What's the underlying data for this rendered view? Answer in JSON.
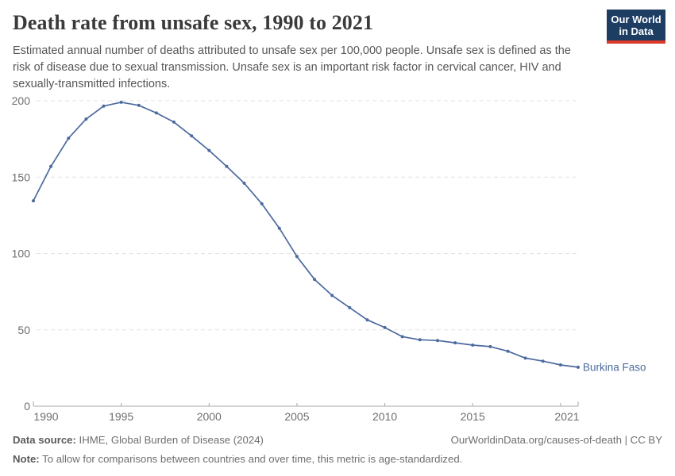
{
  "header": {
    "title": "Death rate from unsafe sex, 1990 to 2021",
    "subtitle_lines": [
      "Estimated annual number of deaths attributed to unsafe sex per 100,000 people. Unsafe sex is defined as the",
      "risk of disease due to sexual transmission. Unsafe sex is an important risk factor in cervical cancer, HIV and",
      "sexually-transmitted infections."
    ],
    "logo": {
      "line1": "Our World",
      "line2": "in Data",
      "bg_color": "#1d3d63",
      "accent_color": "#dc3a2b"
    }
  },
  "chart_data": {
    "type": "line",
    "title": "Death rate from unsafe sex, 1990 to 2021",
    "x": [
      1990,
      1991,
      1992,
      1993,
      1994,
      1995,
      1996,
      1997,
      1998,
      1999,
      2000,
      2001,
      2002,
      2003,
      2004,
      2005,
      2006,
      2007,
      2008,
      2009,
      2010,
      2011,
      2012,
      2013,
      2014,
      2015,
      2016,
      2017,
      2018,
      2019,
      2020,
      2021
    ],
    "series": [
      {
        "name": "Burkina Faso",
        "color": "#4c6a9e",
        "values": [
          134.5,
          157,
          175.5,
          188,
          196.5,
          199,
          197,
          192,
          186,
          177,
          167.5,
          157,
          146,
          132.5,
          116.5,
          98,
          83,
          72.5,
          64.5,
          56.5,
          51.5,
          45.5,
          43.5,
          43,
          41.5,
          40,
          39,
          36,
          31.5,
          29.5,
          27,
          25.5
        ]
      }
    ],
    "xlabel": "",
    "ylabel": "",
    "xlim": [
      1990,
      2021
    ],
    "ylim": [
      0,
      200
    ],
    "x_tick_labels": [
      1990,
      1995,
      2000,
      2005,
      2010,
      2015,
      2021
    ],
    "x_minor_ticks": [
      1995,
      2000,
      2005,
      2010,
      2015,
      2020
    ],
    "y_ticks": [
      0,
      50,
      100,
      150,
      200
    ],
    "grid": "horizontal-dashed",
    "grid_color": "#e2e2e2",
    "axis_color": "#a8a8a8",
    "tick_label_color": "#6e6e6e",
    "legend_position": "end-of-line-label"
  },
  "footer": {
    "data_source_label": "Data source:",
    "data_source_text": " IHME, Global Burden of Disease (2024)",
    "link": "OurWorldinData.org/causes-of-death | CC BY",
    "note_label": "Note:",
    "note_text": " To allow for comparisons between countries and over time, this metric is age-standardized."
  }
}
